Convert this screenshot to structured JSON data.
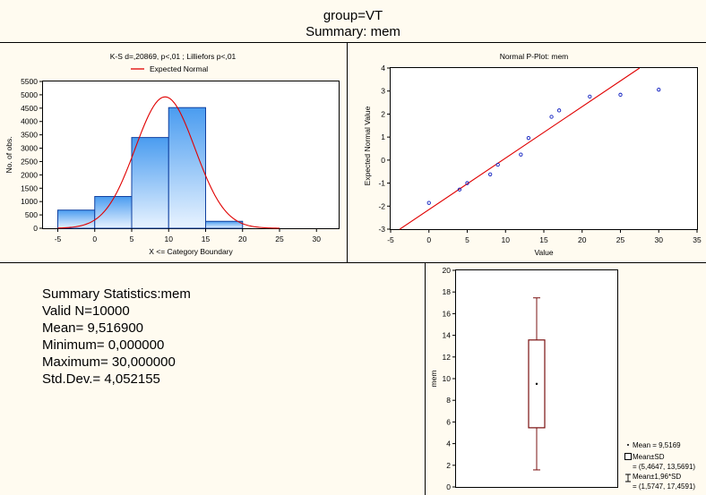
{
  "header": {
    "group": "group=VT",
    "summary": "Summary: mem"
  },
  "stats": {
    "title": "Summary Statistics:mem",
    "valid_n": "Valid N=10000",
    "mean": "Mean=  9,516900",
    "minimum": "Minimum=  0,000000",
    "maximum": "Maximum= 30,000000",
    "std_dev": "Std.Dev.=  4,052155"
  },
  "chart_data": [
    {
      "type": "bar",
      "title": "K-S d=,20869, p<,01 ; Lilliefors p<,01",
      "xlabel": "X <= Category Boundary",
      "ylabel": "No. of obs.",
      "xlim": [
        -7,
        33
      ],
      "ylim": [
        0,
        5500
      ],
      "xticks": [
        -5,
        0,
        5,
        10,
        15,
        20,
        25,
        30
      ],
      "yticks": [
        0,
        500,
        1000,
        1500,
        2000,
        2500,
        3000,
        3500,
        4000,
        4500,
        5000,
        5500
      ],
      "bins": [
        {
          "from": -5,
          "to": 0,
          "value": 680
        },
        {
          "from": 0,
          "to": 5,
          "value": 1190
        },
        {
          "from": 5,
          "to": 10,
          "value": 3400
        },
        {
          "from": 10,
          "to": 15,
          "value": 4520
        },
        {
          "from": 15,
          "to": 20,
          "value": 260
        }
      ],
      "legend": [
        "Expected Normal"
      ],
      "legend_position": "top",
      "normal_curve": {
        "mean": 9.5169,
        "sd": 4.052155,
        "n": 10000,
        "bin_width": 5,
        "color": "#e00000"
      },
      "bar_color_top": "#4a9cf0",
      "bar_color_bottom": "#e8f3ff",
      "grid": false
    },
    {
      "type": "scatter",
      "title": "Normal P-Plot: mem",
      "xlabel": "Value",
      "ylabel": "Expected Normal Value",
      "xlim": [
        -5,
        35
      ],
      "ylim": [
        -3,
        4
      ],
      "xticks": [
        -5,
        0,
        5,
        10,
        15,
        20,
        25,
        30,
        35
      ],
      "yticks": [
        -3,
        -2,
        -1,
        0,
        1,
        2,
        3,
        4
      ],
      "points": [
        {
          "x": 0,
          "y": -1.86
        },
        {
          "x": 4,
          "y": -1.28
        },
        {
          "x": 5,
          "y": -1.0
        },
        {
          "x": 8,
          "y": -0.62
        },
        {
          "x": 9,
          "y": -0.2
        },
        {
          "x": 12,
          "y": 0.24
        },
        {
          "x": 13,
          "y": 0.96
        },
        {
          "x": 16,
          "y": 1.88
        },
        {
          "x": 17,
          "y": 2.16
        },
        {
          "x": 21,
          "y": 2.76
        },
        {
          "x": 25,
          "y": 2.84
        },
        {
          "x": 30,
          "y": 3.06
        }
      ],
      "reference_line": {
        "from": [
          -3.8,
          -3
        ],
        "to": [
          27.5,
          4
        ],
        "color": "#e00000"
      },
      "point_color": "#1020c0",
      "grid": false
    },
    {
      "type": "box",
      "ylabel": "mem",
      "ylim": [
        0,
        20
      ],
      "yticks": [
        0,
        2,
        4,
        6,
        8,
        10,
        12,
        14,
        16,
        18,
        20
      ],
      "mean": 9.5169,
      "box": [
        5.4647,
        13.5691
      ],
      "whiskers": [
        1.5747,
        17.4591
      ],
      "color": "#7a1010",
      "legend": [
        "Mean = 9,5169",
        "Mean±SD",
        "= (5,4647, 13,5691)",
        "Mean±1,96*SD",
        "= (1,5747, 17,4591)"
      ],
      "legend_position": "bottom-right"
    }
  ]
}
